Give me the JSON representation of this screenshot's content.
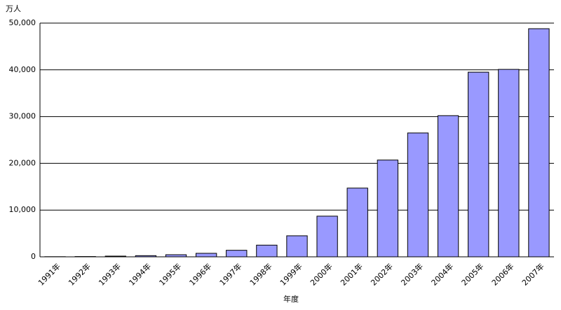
{
  "chart_data": {
    "type": "bar",
    "y_label": "万人",
    "x_label": "年度",
    "categories": [
      "1991年",
      "1992年",
      "1993年",
      "1994年",
      "1995年",
      "1996年",
      "1997年",
      "1998年",
      "1999年",
      "2000年",
      "2001年",
      "2002年",
      "2003年",
      "2004年",
      "2005年",
      "2006年",
      "2007年"
    ],
    "values": [
      30,
      60,
      150,
      250,
      450,
      750,
      1400,
      2500,
      4500,
      8700,
      14700,
      20700,
      26500,
      30200,
      39500,
      40100,
      48800
    ],
    "color": "#9999ff",
    "ylim": [
      0,
      50000
    ],
    "yticks": [
      0,
      {
        "value": 10000,
        "label": "10,000"
      },
      {
        "value": 20000,
        "label": "20,000"
      },
      {
        "value": 30000,
        "label": "30,000"
      },
      {
        "value": 40000,
        "label": "40,000"
      },
      {
        "value": 50000,
        "label": "50,000"
      }
    ],
    "grid": true
  }
}
